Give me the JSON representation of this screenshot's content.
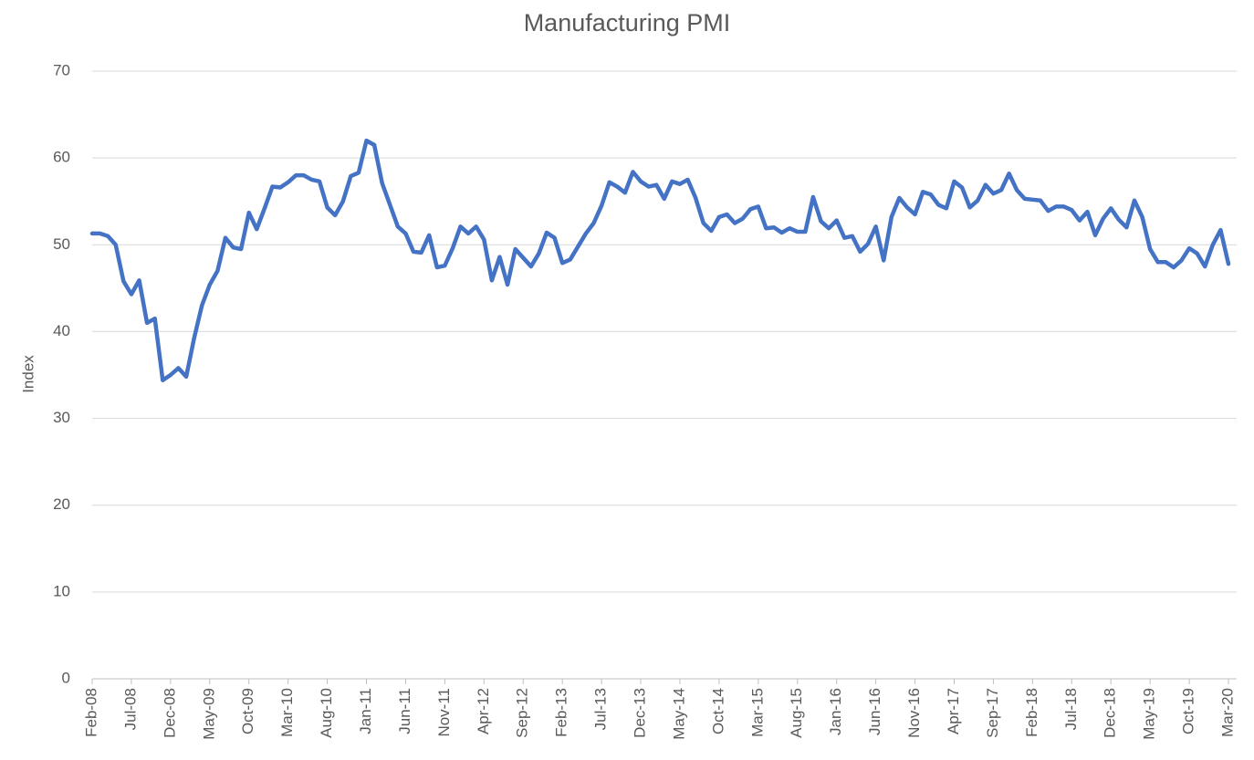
{
  "chart_data": {
    "type": "line",
    "title": "Manufacturing PMI",
    "y_label": "Index",
    "categories": [
      "Feb-08",
      null,
      null,
      null,
      null,
      "Jul-08",
      null,
      null,
      null,
      null,
      "Dec-08",
      null,
      null,
      null,
      null,
      "May-09",
      null,
      null,
      null,
      null,
      "Oct-09",
      null,
      null,
      null,
      null,
      "Mar-10",
      null,
      null,
      null,
      null,
      "Aug-10",
      null,
      null,
      null,
      null,
      "Jan-11",
      null,
      null,
      null,
      null,
      "Jun-11",
      null,
      null,
      null,
      null,
      "Nov-11",
      null,
      null,
      null,
      null,
      "Apr-12",
      null,
      null,
      null,
      null,
      "Sep-12",
      null,
      null,
      null,
      null,
      "Feb-13",
      null,
      null,
      null,
      null,
      "Jul-13",
      null,
      null,
      null,
      null,
      "Dec-13",
      null,
      null,
      null,
      null,
      "May-14",
      null,
      null,
      null,
      null,
      "Oct-14",
      null,
      null,
      null,
      null,
      "Mar-15",
      null,
      null,
      null,
      null,
      "Aug-15",
      null,
      null,
      null,
      null,
      "Jan-16",
      null,
      null,
      null,
      null,
      "Jun-16",
      null,
      null,
      null,
      null,
      "Nov-16",
      null,
      null,
      null,
      null,
      "Apr-17",
      null,
      null,
      null,
      null,
      "Sep-17",
      null,
      null,
      null,
      null,
      "Feb-18",
      null,
      null,
      null,
      null,
      "Jul-18",
      null,
      null,
      null,
      null,
      "Dec-18",
      null,
      null,
      null,
      null,
      "May-19",
      null,
      null,
      null,
      null,
      "Oct-19",
      null,
      null,
      null,
      null,
      "Mar-20"
    ],
    "values": [
      51.3,
      51.3,
      51.0,
      50.0,
      45.8,
      44.3,
      45.9,
      41.0,
      41.5,
      34.4,
      35.0,
      35.8,
      34.8,
      39.2,
      43.0,
      45.4,
      47.0,
      50.8,
      49.7,
      49.5,
      53.7,
      51.8,
      54.2,
      56.7,
      56.6,
      57.2,
      58.0,
      58.0,
      57.5,
      57.3,
      54.3,
      53.4,
      55.0,
      57.9,
      58.3,
      62.0,
      61.5,
      57.1,
      54.6,
      52.1,
      51.3,
      49.2,
      49.1,
      51.1,
      47.4,
      47.6,
      49.6,
      52.1,
      51.3,
      52.1,
      50.6,
      45.9,
      48.6,
      45.4,
      49.5,
      48.5,
      47.5,
      49.0,
      51.4,
      50.8,
      47.9,
      48.3,
      49.8,
      51.3,
      52.5,
      54.5,
      57.2,
      56.7,
      56.0,
      58.4,
      57.3,
      56.7,
      56.9,
      55.3,
      57.3,
      57.0,
      57.5,
      55.4,
      52.5,
      51.6,
      53.2,
      53.5,
      52.5,
      53.0,
      54.1,
      54.4,
      51.9,
      52.0,
      51.4,
      51.9,
      51.5,
      51.5,
      55.5,
      52.7,
      51.9,
      52.8,
      50.8,
      51.0,
      49.2,
      50.1,
      52.1,
      48.2,
      53.2,
      55.4,
      54.3,
      53.5,
      56.1,
      55.8,
      54.6,
      54.2,
      57.3,
      56.6,
      54.3,
      55.1,
      56.9,
      55.9,
      56.3,
      58.2,
      56.3,
      55.3,
      55.2,
      55.1,
      53.9,
      54.4,
      54.4,
      54.0,
      52.8,
      53.8,
      51.1,
      53.0,
      54.2,
      52.9,
      52.0,
      55.1,
      53.2,
      49.5,
      48.0,
      48.0,
      47.4,
      48.2,
      49.6,
      49.0,
      47.5,
      50.0,
      51.7,
      47.8
    ],
    "color": "#4472c4",
    "ylim": [
      0,
      70
    ],
    "yticks": [
      0,
      10,
      20,
      30,
      40,
      50,
      60,
      70
    ],
    "grid": true
  }
}
